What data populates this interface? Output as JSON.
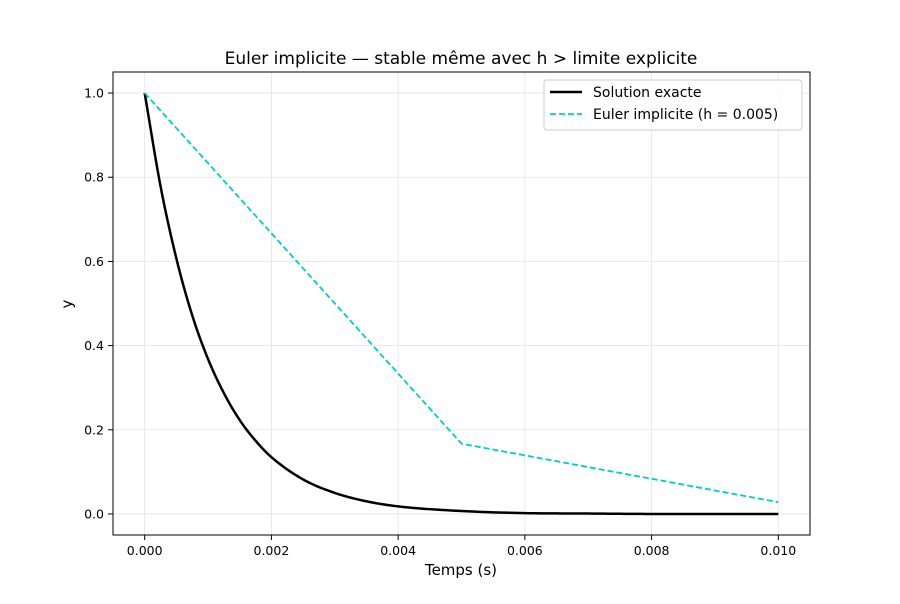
{
  "chart_data": {
    "type": "line",
    "title": "Euler implicite — stable même avec h > limite explicite",
    "xlabel": "Temps (s)",
    "ylabel": "y",
    "xlim": [
      -0.0005,
      0.0105
    ],
    "ylim": [
      -0.05,
      1.05
    ],
    "grid": true,
    "legend_position": "top-right",
    "x_ticks": [
      0.0,
      0.002,
      0.004,
      0.006,
      0.008,
      0.01
    ],
    "x_tick_labels": [
      "0.000",
      "0.002",
      "0.004",
      "0.006",
      "0.008",
      "0.010"
    ],
    "y_ticks": [
      0.0,
      0.2,
      0.4,
      0.6,
      0.8,
      1.0
    ],
    "y_tick_labels": [
      "0.0",
      "0.2",
      "0.4",
      "0.6",
      "0.8",
      "1.0"
    ],
    "series": [
      {
        "name": "Solution exacte",
        "color": "#000000",
        "style": "solid",
        "x": [
          0.0,
          0.00025,
          0.0005,
          0.00075,
          0.001,
          0.00125,
          0.0015,
          0.00175,
          0.002,
          0.0025,
          0.003,
          0.0035,
          0.004,
          0.005,
          0.006,
          0.007,
          0.008,
          0.009,
          0.01
        ],
        "y": [
          1.0,
          0.779,
          0.607,
          0.472,
          0.368,
          0.287,
          0.223,
          0.174,
          0.135,
          0.082,
          0.05,
          0.03,
          0.018,
          0.007,
          0.002,
          0.001,
          0.0,
          0.0,
          0.0
        ]
      },
      {
        "name": "Euler implicite (h = 0.005)",
        "color": "#00cccc",
        "style": "dashed",
        "x": [
          0.0,
          0.005,
          0.01
        ],
        "y": [
          1.0,
          0.167,
          0.028
        ]
      }
    ]
  }
}
